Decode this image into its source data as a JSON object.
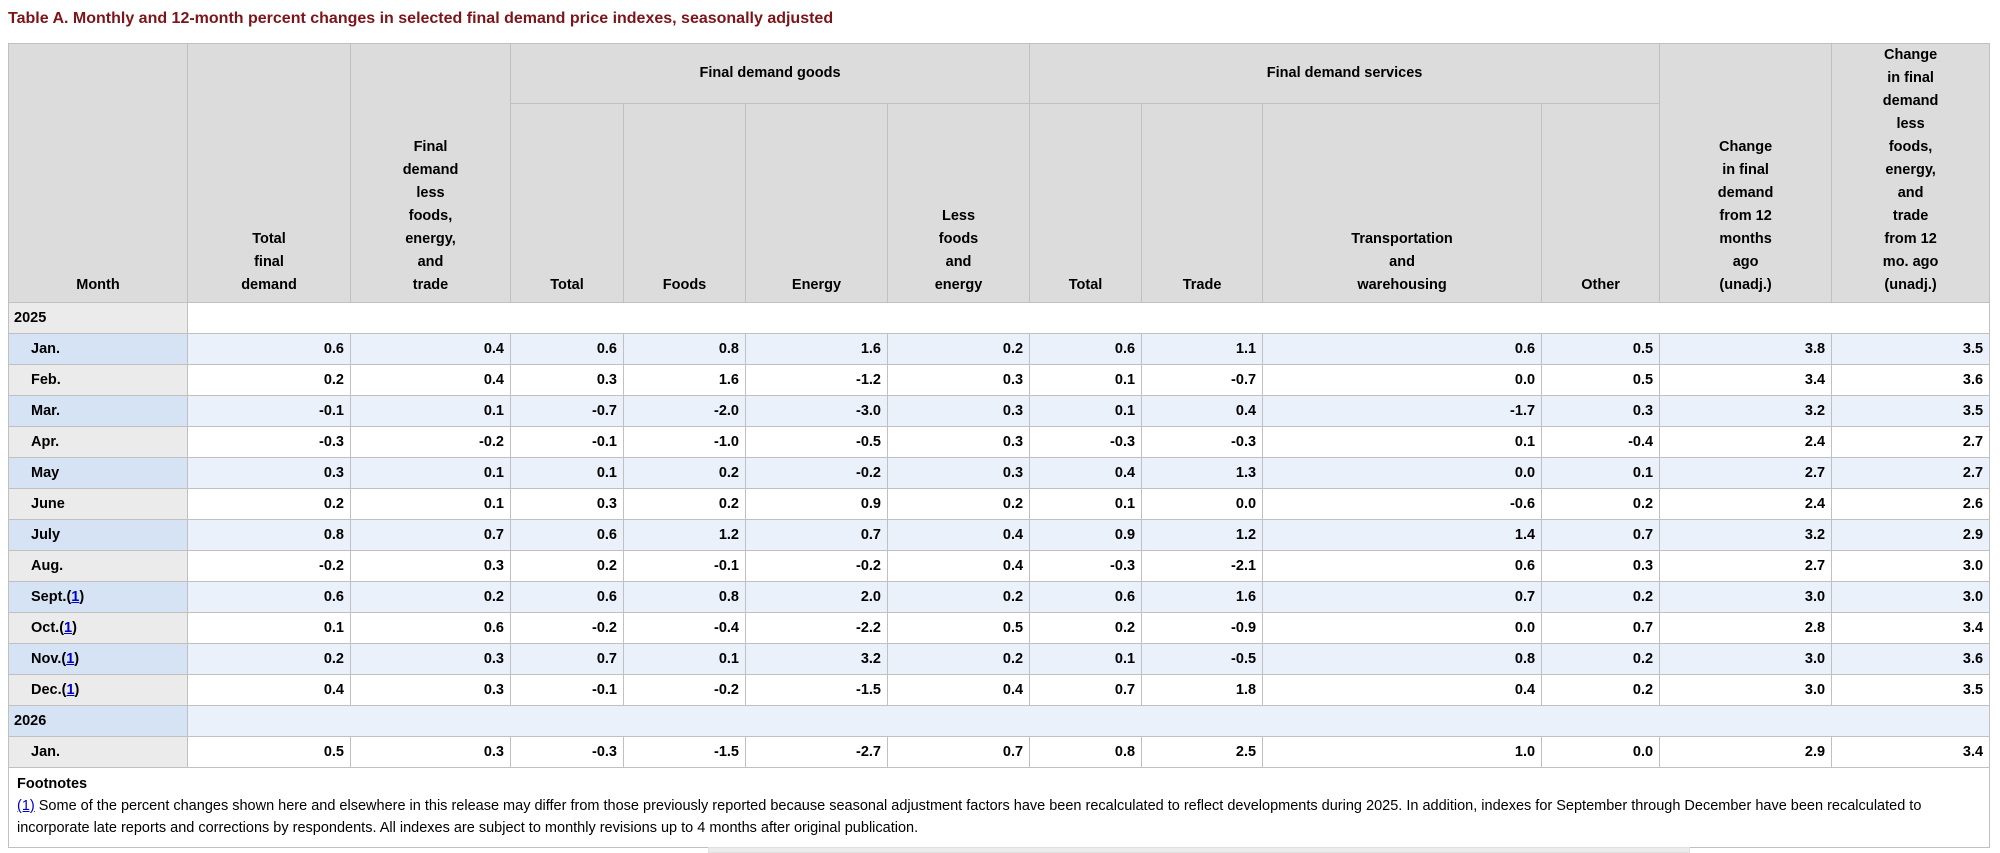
{
  "page": {
    "title": "Table A. Monthly and 12-month percent changes in selected final demand price indexes, seasonally adjusted"
  },
  "colors": {
    "title": "#7d1419",
    "header_bg": "#dcdcdc",
    "border": "#c0c0c0",
    "row_blue": "#eaf1fb",
    "row_white": "#ffffff",
    "month_blue": "#d6e3f5",
    "month_gray": "#ebebeb",
    "link": "#0000cc"
  },
  "table": {
    "columns": {
      "month": "Month",
      "total_final_demand": "Total\nfinal\ndemand",
      "fd_less_fet": "Final\ndemand\nless\nfoods,\nenergy,\nand\ntrade",
      "goods_total": "Total",
      "foods": "Foods",
      "energy": "Energy",
      "less_foods_energy": "Less\nfoods\nand\nenergy",
      "services_total": "Total",
      "trade": "Trade",
      "transportation": "Transportation\nand\nwarehousing",
      "other": "Other",
      "change_12mo": "Change\nin final\ndemand\nfrom 12\nmonths\nago\n(unadj.)",
      "change_less_12mo": "Change\nin final\ndemand\nless\nfoods,\nenergy,\nand\ntrade\nfrom 12\nmo. ago\n(unadj.)"
    },
    "groups": {
      "goods": "Final demand goods",
      "services": "Final demand services"
    },
    "rows": [
      {
        "type": "year",
        "label": "2025"
      },
      {
        "type": "month",
        "label": "Jan.",
        "values": [
          "0.6",
          "0.4",
          "0.6",
          "0.8",
          "1.6",
          "0.2",
          "0.6",
          "1.1",
          "0.6",
          "0.5",
          "3.8",
          "3.5"
        ]
      },
      {
        "type": "month",
        "label": "Feb.",
        "values": [
          "0.2",
          "0.4",
          "0.3",
          "1.6",
          "-1.2",
          "0.3",
          "0.1",
          "-0.7",
          "0.0",
          "0.5",
          "3.4",
          "3.6"
        ]
      },
      {
        "type": "month",
        "label": "Mar.",
        "values": [
          "-0.1",
          "0.1",
          "-0.7",
          "-2.0",
          "-3.0",
          "0.3",
          "0.1",
          "0.4",
          "-1.7",
          "0.3",
          "3.2",
          "3.5"
        ]
      },
      {
        "type": "month",
        "label": "Apr.",
        "values": [
          "-0.3",
          "-0.2",
          "-0.1",
          "-1.0",
          "-0.5",
          "0.3",
          "-0.3",
          "-0.3",
          "0.1",
          "-0.4",
          "2.4",
          "2.7"
        ]
      },
      {
        "type": "month",
        "label": "May",
        "values": [
          "0.3",
          "0.1",
          "0.1",
          "0.2",
          "-0.2",
          "0.3",
          "0.4",
          "1.3",
          "0.0",
          "0.1",
          "2.7",
          "2.7"
        ]
      },
      {
        "type": "month",
        "label": "June",
        "values": [
          "0.2",
          "0.1",
          "0.3",
          "0.2",
          "0.9",
          "0.2",
          "0.1",
          "0.0",
          "-0.6",
          "0.2",
          "2.4",
          "2.6"
        ]
      },
      {
        "type": "month",
        "label": "July",
        "values": [
          "0.8",
          "0.7",
          "0.6",
          "1.2",
          "0.7",
          "0.4",
          "0.9",
          "1.2",
          "1.4",
          "0.7",
          "3.2",
          "2.9"
        ]
      },
      {
        "type": "month",
        "label": "Aug.",
        "values": [
          "-0.2",
          "0.3",
          "0.2",
          "-0.1",
          "-0.2",
          "0.4",
          "-0.3",
          "-2.1",
          "0.6",
          "0.3",
          "2.7",
          "3.0"
        ]
      },
      {
        "type": "month",
        "label": "Sept.",
        "footnote": "1",
        "values": [
          "0.6",
          "0.2",
          "0.6",
          "0.8",
          "2.0",
          "0.2",
          "0.6",
          "1.6",
          "0.7",
          "0.2",
          "3.0",
          "3.0"
        ]
      },
      {
        "type": "month",
        "label": "Oct.",
        "footnote": "1",
        "values": [
          "0.1",
          "0.6",
          "-0.2",
          "-0.4",
          "-2.2",
          "0.5",
          "0.2",
          "-0.9",
          "0.0",
          "0.7",
          "2.8",
          "3.4"
        ]
      },
      {
        "type": "month",
        "label": "Nov.",
        "footnote": "1",
        "values": [
          "0.2",
          "0.3",
          "0.7",
          "0.1",
          "3.2",
          "0.2",
          "0.1",
          "-0.5",
          "0.8",
          "0.2",
          "3.0",
          "3.6"
        ]
      },
      {
        "type": "month",
        "label": "Dec.",
        "footnote": "1",
        "values": [
          "0.4",
          "0.3",
          "-0.1",
          "-0.2",
          "-1.5",
          "0.4",
          "0.7",
          "1.8",
          "0.4",
          "0.2",
          "3.0",
          "3.5"
        ]
      },
      {
        "type": "year",
        "label": "2026"
      },
      {
        "type": "month",
        "label": "Jan.",
        "values": [
          "0.5",
          "0.3",
          "-0.3",
          "-1.5",
          "-2.7",
          "0.7",
          "0.8",
          "2.5",
          "1.0",
          "0.0",
          "2.9",
          "3.4"
        ]
      }
    ]
  },
  "footnotes": {
    "heading": "Footnotes",
    "marker": "(1)",
    "text": "Some of the percent changes shown here and elsewhere in this release may differ from those previously reported because seasonal adjustment factors have been recalculated to reflect developments during 2025. In addition, indexes for September through December have been recalculated to incorporate late reports and corrections by respondents. All indexes are subject to monthly revisions up to 4 months after original publication."
  }
}
